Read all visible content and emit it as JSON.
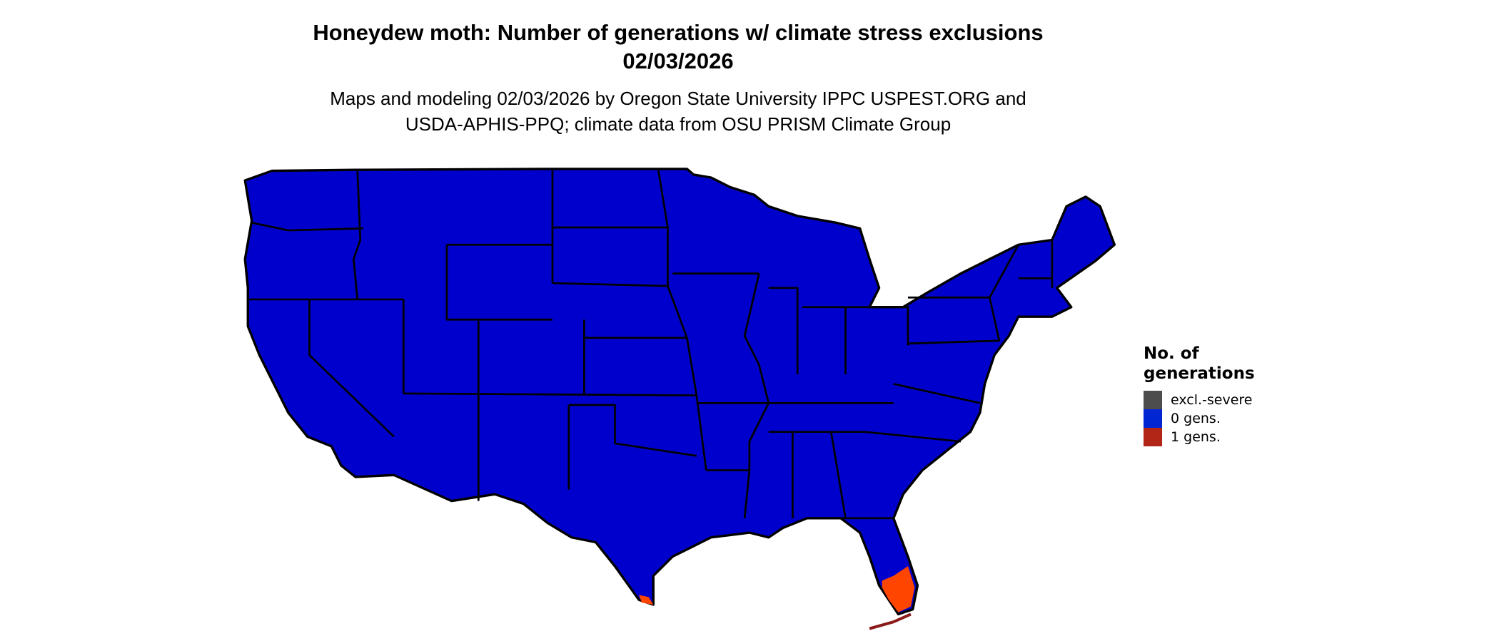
{
  "title": {
    "line1": "Honeydew moth: Number of generations w/ climate stress exclusions",
    "line2": "02/03/2026"
  },
  "subtitle": {
    "line1": "Maps and modeling 02/03/2026 by Oregon State University IPPC USPEST.ORG and",
    "line2": "USDA-APHIS-PPQ; climate data from OSU PRISM Climate Group"
  },
  "map": {
    "region": "Contiguous United States",
    "dominant_class": "0 gens.",
    "colors": {
      "zero_gens_fill": "#0000cc",
      "one_gen_fill": "#ff4500",
      "one_gen_dark": "#8b1a1a",
      "borders": "#000000"
    }
  },
  "legend": {
    "title_line1": "No. of",
    "title_line2": "generations",
    "items": [
      {
        "label": "excl.-severe",
        "color": "#4d4d4d"
      },
      {
        "label": "0 gens.",
        "color": "#0026d4"
      },
      {
        "label": "1 gens.",
        "color": "#b22618"
      }
    ]
  }
}
